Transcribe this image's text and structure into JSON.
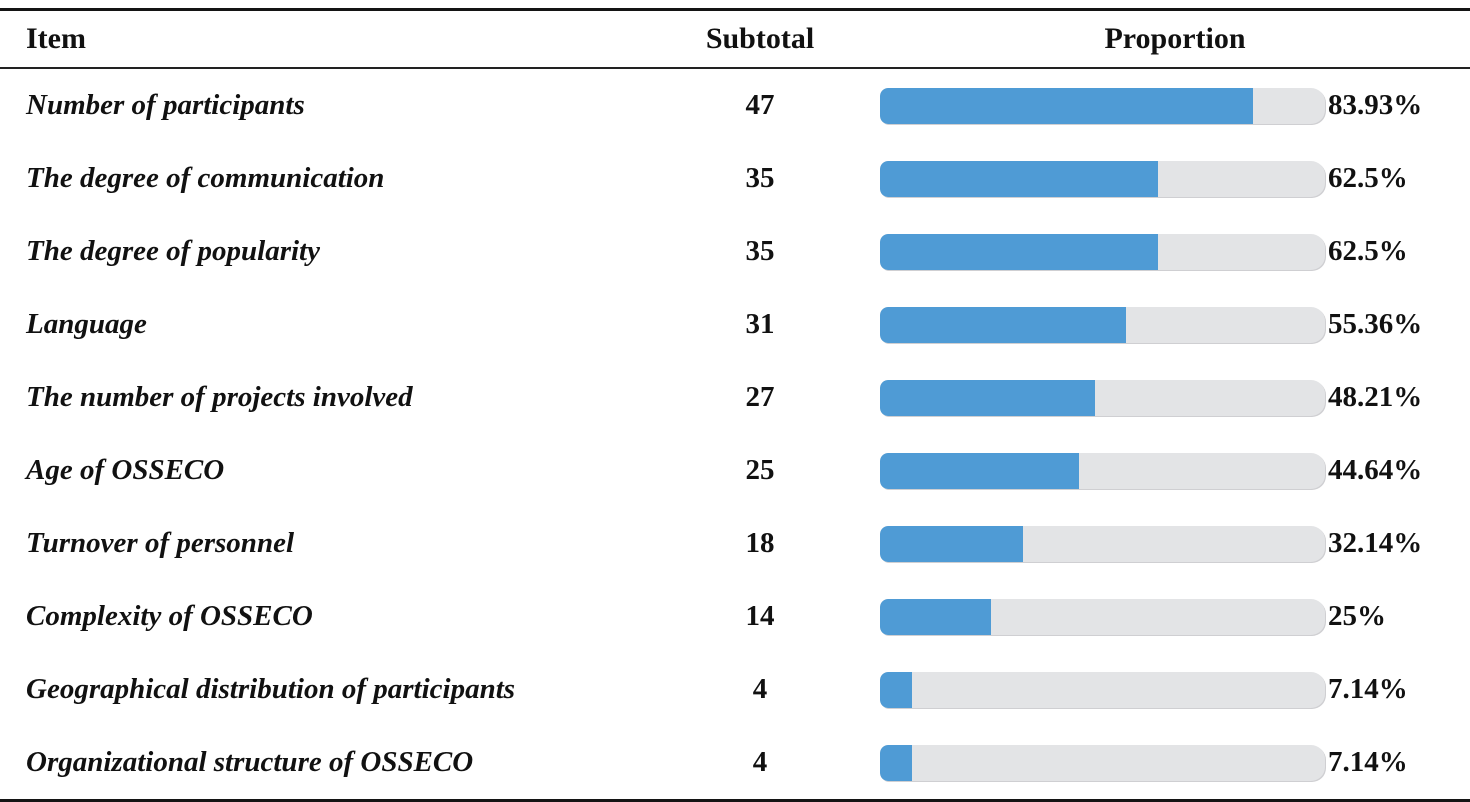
{
  "table": {
    "headers": {
      "item": "Item",
      "subtotal": "Subtotal",
      "proportion": "Proportion"
    },
    "rows": [
      {
        "item": "Number of participants",
        "subtotal": "47",
        "pct": 83.93,
        "pct_label": "83.93%"
      },
      {
        "item": "The degree of communication",
        "subtotal": "35",
        "pct": 62.5,
        "pct_label": "62.5%"
      },
      {
        "item": "The degree of popularity",
        "subtotal": "35",
        "pct": 62.5,
        "pct_label": "62.5%"
      },
      {
        "item": "Language",
        "subtotal": "31",
        "pct": 55.36,
        "pct_label": "55.36%"
      },
      {
        "item": "The number of projects involved",
        "subtotal": "27",
        "pct": 48.21,
        "pct_label": "48.21%"
      },
      {
        "item": "Age of OSSECO",
        "subtotal": "25",
        "pct": 44.64,
        "pct_label": "44.64%"
      },
      {
        "item": "Turnover of personnel",
        "subtotal": "18",
        "pct": 32.14,
        "pct_label": "32.14%"
      },
      {
        "item": "Complexity of OSSECO",
        "subtotal": "14",
        "pct": 25,
        "pct_label": "25%"
      },
      {
        "item": "Geographical distribution of participants",
        "subtotal": "4",
        "pct": 7.14,
        "pct_label": "7.14%"
      },
      {
        "item": "Organizational structure of OSSECO",
        "subtotal": "4",
        "pct": 7.14,
        "pct_label": "7.14%"
      }
    ]
  },
  "chart_data": {
    "type": "bar",
    "title": "",
    "categories": [
      "Number of participants",
      "The degree of communication",
      "The degree of popularity",
      "Language",
      "The number of projects involved",
      "Age of OSSECO",
      "Turnover of personnel",
      "Complexity of OSSECO",
      "Geographical distribution of participants",
      "Organizational structure of OSSECO"
    ],
    "series": [
      {
        "name": "Subtotal",
        "values": [
          47,
          35,
          35,
          31,
          27,
          25,
          18,
          14,
          4,
          4
        ]
      },
      {
        "name": "Proportion (%)",
        "values": [
          83.93,
          62.5,
          62.5,
          55.36,
          48.21,
          44.64,
          32.14,
          25,
          7.14,
          7.14
        ]
      }
    ],
    "xlabel": "",
    "ylabel": "",
    "xlim": [
      0,
      100
    ],
    "grid": false,
    "legend_position": "none",
    "orientation": "horizontal",
    "bar_color": "#4f9bd5",
    "track_color": "#e3e4e6"
  }
}
